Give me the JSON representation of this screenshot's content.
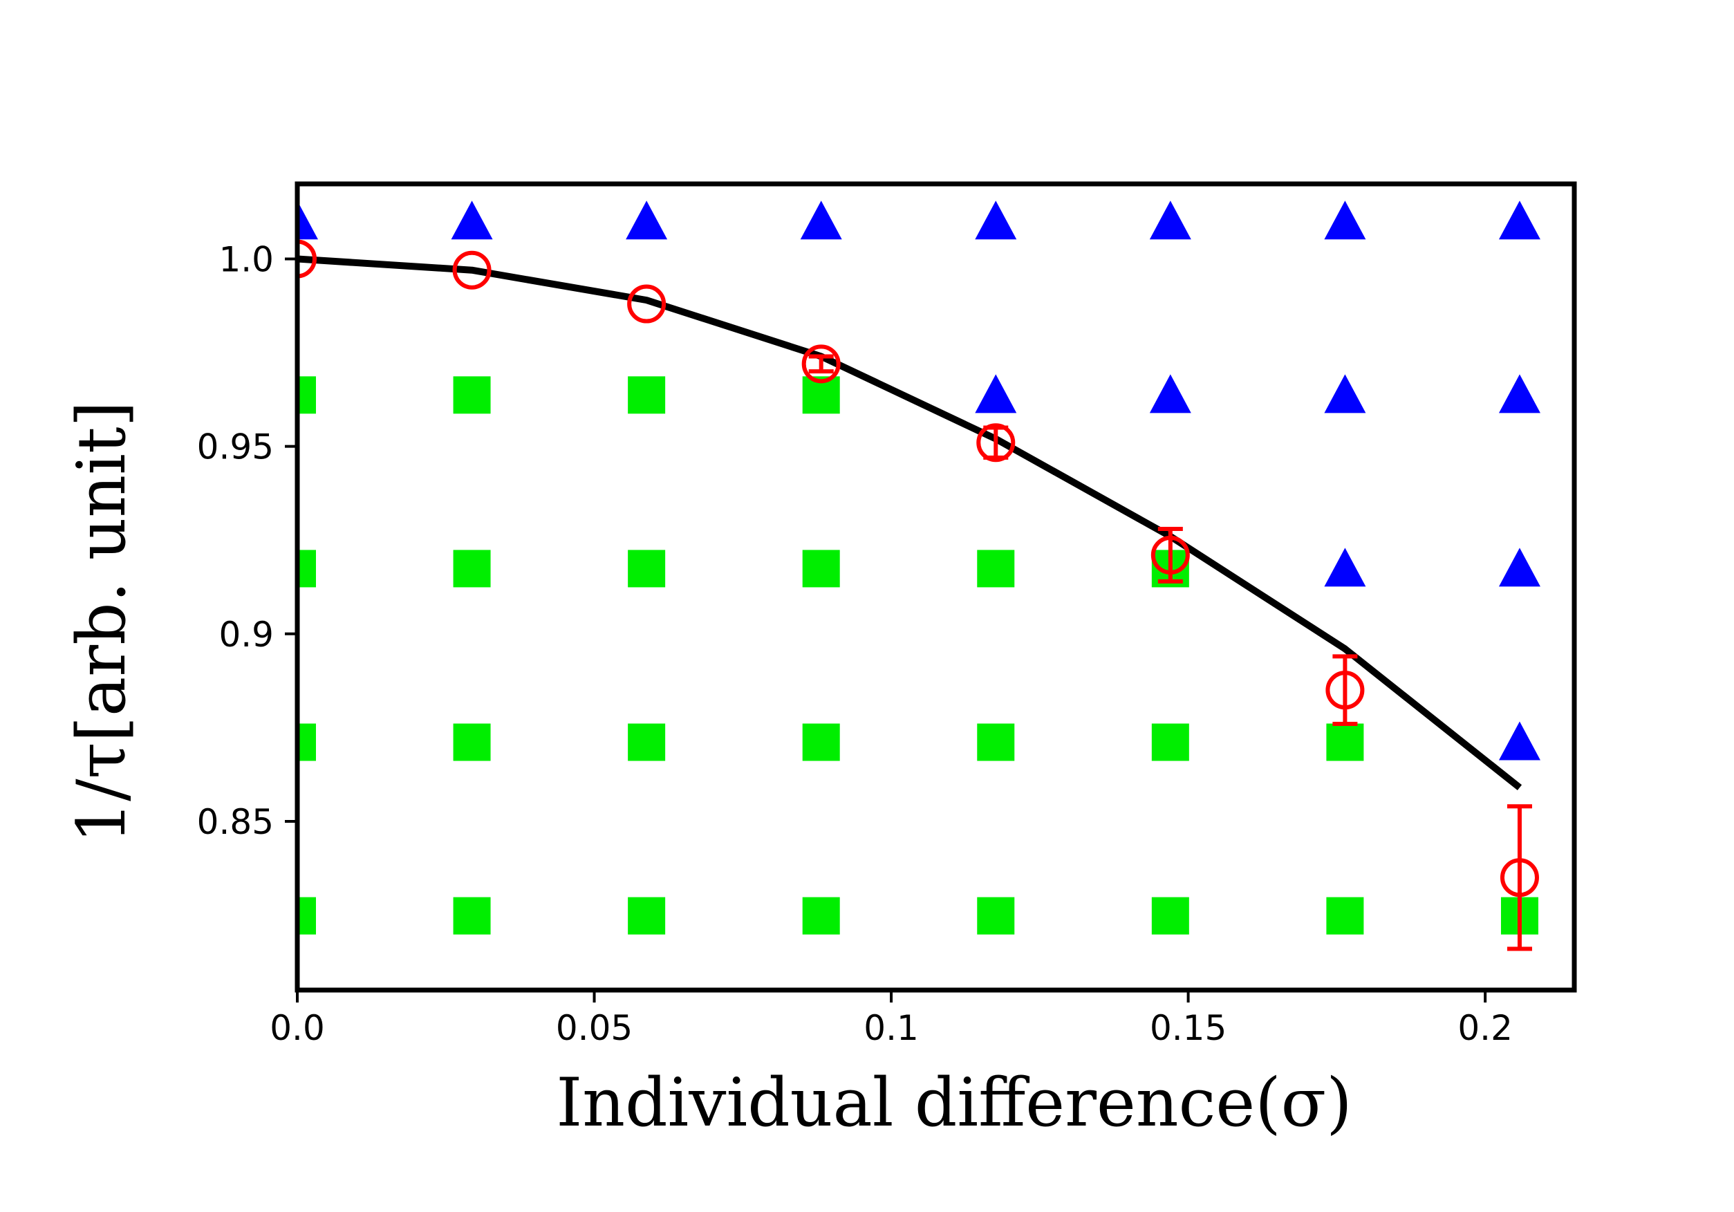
{
  "chart_data": {
    "type": "scatter",
    "xlabel": "Individual difference(σ)",
    "ylabel": "1/τ[arb. unit]",
    "xlim": [
      0.0,
      0.215
    ],
    "ylim": [
      0.805,
      1.02
    ],
    "xticks": [
      0.0,
      0.05,
      0.1,
      0.15,
      0.2
    ],
    "xtick_labels": [
      "0.0",
      "0.05",
      "0.1",
      "0.15",
      "0.2"
    ],
    "yticks": [
      0.85,
      0.9,
      0.95,
      1.0
    ],
    "ytick_labels": [
      "0.85",
      "0.9",
      "0.95",
      "1.0"
    ],
    "grid": false,
    "legend": "none",
    "series": [
      {
        "marker": "triangle",
        "color": "#0000ff",
        "points": [
          [
            0.0,
            1.01
          ],
          [
            0.0294,
            1.01
          ],
          [
            0.0588,
            1.01
          ],
          [
            0.0882,
            1.01
          ],
          [
            0.1176,
            1.01
          ],
          [
            0.147,
            1.01
          ],
          [
            0.1764,
            1.01
          ],
          [
            0.2058,
            1.01
          ],
          [
            0.1176,
            0.9637
          ],
          [
            0.147,
            0.9637
          ],
          [
            0.1764,
            0.9637
          ],
          [
            0.2058,
            0.9637
          ],
          [
            0.1764,
            0.9174
          ],
          [
            0.2058,
            0.9174
          ],
          [
            0.2058,
            0.8711
          ]
        ]
      },
      {
        "marker": "square",
        "color": "#00ee00",
        "points": [
          [
            0.0,
            0.9637
          ],
          [
            0.0294,
            0.9637
          ],
          [
            0.0588,
            0.9637
          ],
          [
            0.0882,
            0.9637
          ],
          [
            0.0,
            0.9174
          ],
          [
            0.0294,
            0.9174
          ],
          [
            0.0588,
            0.9174
          ],
          [
            0.0882,
            0.9174
          ],
          [
            0.1176,
            0.9174
          ],
          [
            0.147,
            0.9174
          ],
          [
            0.0,
            0.8711
          ],
          [
            0.0294,
            0.8711
          ],
          [
            0.0588,
            0.8711
          ],
          [
            0.0882,
            0.8711
          ],
          [
            0.1176,
            0.8711
          ],
          [
            0.147,
            0.8711
          ],
          [
            0.1764,
            0.8711
          ],
          [
            0.0,
            0.8248
          ],
          [
            0.0294,
            0.8248
          ],
          [
            0.0588,
            0.8248
          ],
          [
            0.0882,
            0.8248
          ],
          [
            0.1176,
            0.8248
          ],
          [
            0.147,
            0.8248
          ],
          [
            0.1764,
            0.8248
          ],
          [
            0.2058,
            0.8248
          ]
        ]
      },
      {
        "marker": "open-circle",
        "color": "#ff0000",
        "x": [
          0.0,
          0.0294,
          0.0588,
          0.0882,
          0.1176,
          0.147,
          0.1764,
          0.2058
        ],
        "y": [
          1.0,
          0.997,
          0.988,
          0.972,
          0.951,
          0.921,
          0.885,
          0.835
        ],
        "yerr": [
          0.0,
          0.0,
          0.0,
          0.002,
          0.004,
          0.007,
          0.009,
          0.019
        ]
      },
      {
        "type": "line",
        "color": "#000000",
        "x": [
          0.0,
          0.0294,
          0.0588,
          0.0882,
          0.1176,
          0.147,
          0.1764,
          0.2058
        ],
        "y": [
          1.0,
          0.997,
          0.989,
          0.974,
          0.952,
          0.926,
          0.896,
          0.859
        ]
      }
    ]
  }
}
